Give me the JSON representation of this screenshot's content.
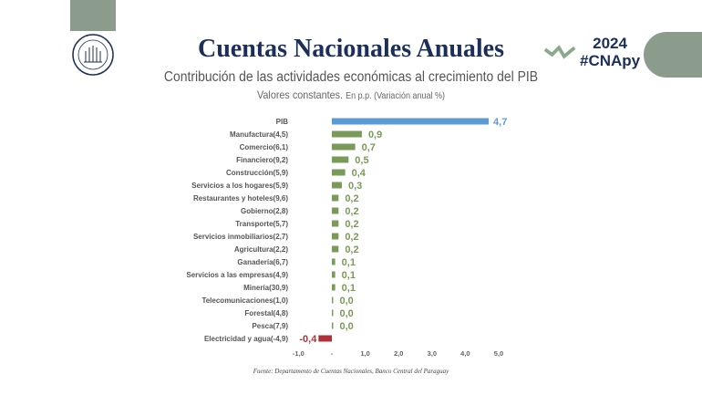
{
  "header": {
    "title": "Cuentas Nacionales Anuales",
    "subtitle": "Contribución de las actividades económicas al crecimiento del PIB",
    "subtitle2_main": "Valores constantes.",
    "subtitle2_small": "En p.p. (Variación anual %)",
    "year": "2024",
    "hashtag": "#CNApy",
    "logo": "BANCO CENTRAL DEL PARAGUAY"
  },
  "source": "Fuente: Departamento de Cuentas Nacionales, Banco Central del Paraguay",
  "colors": {
    "total": "#5b9bd5",
    "positive": "#7a9a5a",
    "negative": "#b03038",
    "title": "#1c2f5a"
  },
  "chart_data": {
    "type": "bar",
    "orientation": "horizontal",
    "categories": [
      "PIB",
      "Manufactura(4,5)",
      "Comercio(6,1)",
      "Financiero(9,2)",
      "Construcción(5,9)",
      "Servicios a los hogares(5,9)",
      "Restaurantes y hoteles(9,6)",
      "Gobierno(2,8)",
      "Transporte(5,7)",
      "Servicios inmobiliarios(2,7)",
      "Agricultura(2,2)",
      "Ganadería(6,7)",
      "Servicios a las empresas(4,9)",
      "Minería(30,9)",
      "Telecomunicaciones(1,0)",
      "Forestal(4,8)",
      "Pesca(7,9)",
      "Electricidad y agua(-4,9)"
    ],
    "values": [
      4.7,
      0.9,
      0.7,
      0.5,
      0.4,
      0.3,
      0.2,
      0.2,
      0.2,
      0.2,
      0.2,
      0.1,
      0.1,
      0.1,
      0.04,
      0.03,
      0.02,
      -0.4
    ],
    "data_labels": [
      "4,7",
      "0,9",
      "0,7",
      "0,5",
      "0,4",
      "0,3",
      "0,2",
      "0,2",
      "0,2",
      "0,2",
      "0,2",
      "0,1",
      "0,1",
      "0,1",
      "0,0",
      "0,0",
      "0,0",
      "-0,4"
    ],
    "xlim": [
      -1,
      5
    ],
    "x_ticks": [
      -1,
      0,
      1,
      2,
      3,
      4,
      5
    ],
    "x_tick_labels": [
      "-1,0",
      "-",
      "1,0",
      "2,0",
      "3,0",
      "4,0",
      "5,0"
    ],
    "grid": false
  }
}
